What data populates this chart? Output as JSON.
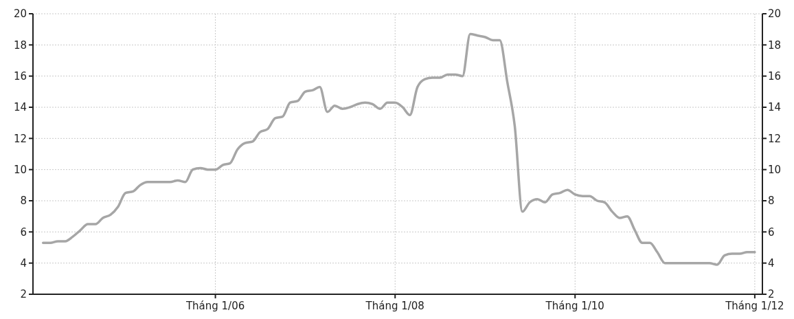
{
  "chart_data": {
    "type": "line",
    "x": [
      "2004-02",
      "2004-03",
      "2004-04",
      "2004-05",
      "2004-06",
      "2004-07",
      "2004-08",
      "2004-09",
      "2004-10",
      "2004-11",
      "2004-12",
      "2005-01",
      "2005-02",
      "2005-03",
      "2005-04",
      "2005-05",
      "2005-06",
      "2005-07",
      "2005-08",
      "2005-09",
      "2005-10",
      "2005-11",
      "2005-12",
      "2006-01",
      "2006-02",
      "2006-03",
      "2006-04",
      "2006-05",
      "2006-06",
      "2006-07",
      "2006-08",
      "2006-09",
      "2006-10",
      "2006-11",
      "2006-12",
      "2007-01",
      "2007-02",
      "2007-03",
      "2007-04",
      "2007-05",
      "2007-06",
      "2007-07",
      "2007-08",
      "2007-09",
      "2007-10",
      "2007-11",
      "2007-12",
      "2008-01",
      "2008-02",
      "2008-03",
      "2008-04",
      "2008-05",
      "2008-06",
      "2008-07",
      "2008-08",
      "2008-09",
      "2008-10",
      "2008-11",
      "2008-12",
      "2009-01",
      "2009-02",
      "2009-03",
      "2009-04",
      "2009-05",
      "2009-06",
      "2009-07",
      "2009-08",
      "2009-09",
      "2009-10",
      "2009-11",
      "2009-12",
      "2010-01",
      "2010-02",
      "2010-03",
      "2010-04",
      "2010-05",
      "2010-06",
      "2010-07",
      "2010-08",
      "2010-09",
      "2010-10",
      "2010-11",
      "2010-12",
      "2011-01",
      "2011-02",
      "2011-03",
      "2011-04",
      "2011-05",
      "2011-06",
      "2011-07",
      "2011-08",
      "2011-09",
      "2011-10",
      "2011-11",
      "2011-12",
      "2012-01"
    ],
    "series": [
      {
        "color": "#a6a6a6",
        "values": [
          5.3,
          5.3,
          5.4,
          5.4,
          5.7,
          6.1,
          6.5,
          6.5,
          6.9,
          7.1,
          7.6,
          8.5,
          8.6,
          9.0,
          9.2,
          9.2,
          9.2,
          9.2,
          9.3,
          9.2,
          10.0,
          10.1,
          10.0,
          10.0,
          10.3,
          10.4,
          11.3,
          11.7,
          11.8,
          12.4,
          12.6,
          13.3,
          13.4,
          14.3,
          14.4,
          15.0,
          15.1,
          15.3,
          13.7,
          14.1,
          13.9,
          14.0,
          14.2,
          14.3,
          14.2,
          13.9,
          14.3,
          14.3,
          14.0,
          13.5,
          15.3,
          15.8,
          15.9,
          15.9,
          16.1,
          16.1,
          16.0,
          18.7,
          18.6,
          18.5,
          18.3,
          18.3,
          15.6,
          12.8,
          7.3,
          7.9,
          8.1,
          7.9,
          8.4,
          8.5,
          8.7,
          8.4,
          8.3,
          8.3,
          8.0,
          7.9,
          7.3,
          6.9,
          7.0,
          6.1,
          5.3,
          5.3,
          4.7,
          4.0,
          4.0,
          4.0,
          4.0,
          4.0,
          4.0,
          4.0,
          3.9,
          4.5,
          4.6,
          4.6,
          4.7,
          4.7
        ]
      }
    ],
    "xlim": [
      "2003-12-22",
      "2012-02-01"
    ],
    "xticks": [
      {
        "value": "2006-01",
        "label": "Tháng 1/06"
      },
      {
        "value": "2008-01",
        "label": "Tháng 1/08"
      },
      {
        "value": "2010-01",
        "label": "Tháng 1/10"
      },
      {
        "value": "2012-01",
        "label": "Tháng 1/12"
      }
    ],
    "ylim": [
      2,
      20
    ],
    "yticks": [
      2,
      4,
      6,
      8,
      10,
      12,
      14,
      16,
      18,
      20
    ],
    "y2lim": [
      2,
      20
    ],
    "y2ticks": [
      2,
      4,
      6,
      8,
      10,
      12,
      14,
      16,
      18,
      20
    ],
    "grid": true,
    "marker": "none",
    "line_style": "solid"
  }
}
